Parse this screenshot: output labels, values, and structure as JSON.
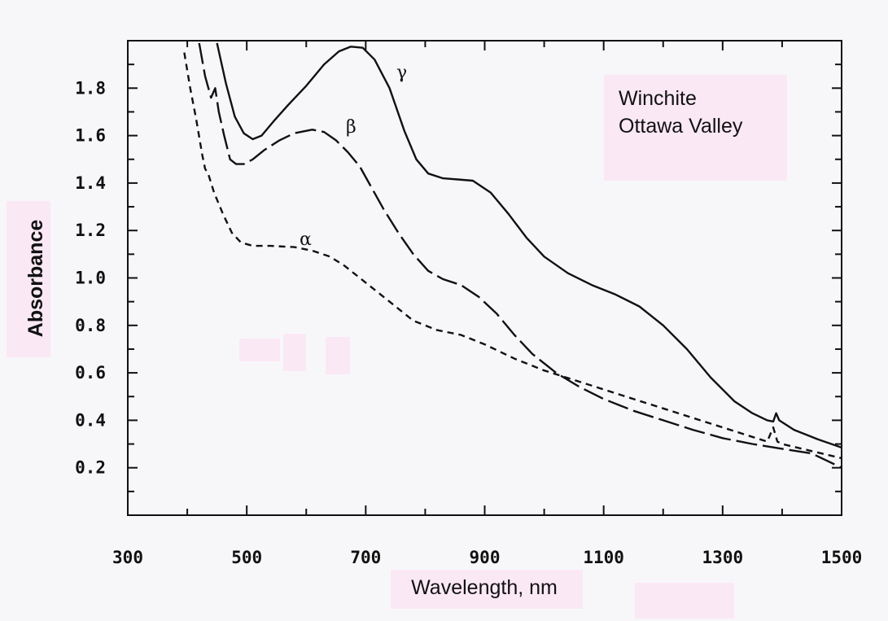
{
  "chart_data": {
    "type": "line",
    "xlabel": "Wavelength, nm",
    "ylabel": "Absorbance",
    "xlim": [
      300,
      1500
    ],
    "ylim": [
      0,
      2.0
    ],
    "xticks": [
      300,
      500,
      700,
      900,
      1100,
      1300,
      1500
    ],
    "yticks": [
      0.2,
      0.4,
      0.6,
      0.8,
      1.0,
      1.2,
      1.4,
      1.6,
      1.8
    ],
    "ytick_labels": [
      "0.2",
      "0.4",
      "0.6",
      "0.8",
      "1.0",
      "1.2",
      "1.4",
      "1.6",
      "1.8"
    ],
    "grid": false,
    "annotation": [
      "Winchite",
      "Ottawa Valley"
    ],
    "series": [
      {
        "name": "γ",
        "style": "solid",
        "points": [
          [
            450,
            1.99
          ],
          [
            465,
            1.82
          ],
          [
            480,
            1.68
          ],
          [
            495,
            1.61
          ],
          [
            510,
            1.585
          ],
          [
            525,
            1.6
          ],
          [
            545,
            1.66
          ],
          [
            570,
            1.73
          ],
          [
            600,
            1.81
          ],
          [
            630,
            1.9
          ],
          [
            655,
            1.955
          ],
          [
            675,
            1.975
          ],
          [
            695,
            1.97
          ],
          [
            715,
            1.92
          ],
          [
            740,
            1.8
          ],
          [
            765,
            1.62
          ],
          [
            785,
            1.5
          ],
          [
            805,
            1.44
          ],
          [
            830,
            1.42
          ],
          [
            855,
            1.415
          ],
          [
            880,
            1.41
          ],
          [
            910,
            1.36
          ],
          [
            940,
            1.27
          ],
          [
            970,
            1.17
          ],
          [
            1000,
            1.09
          ],
          [
            1040,
            1.02
          ],
          [
            1080,
            0.97
          ],
          [
            1120,
            0.93
          ],
          [
            1160,
            0.88
          ],
          [
            1200,
            0.8
          ],
          [
            1240,
            0.7
          ],
          [
            1280,
            0.58
          ],
          [
            1320,
            0.48
          ],
          [
            1350,
            0.43
          ],
          [
            1375,
            0.4
          ],
          [
            1385,
            0.395
          ],
          [
            1390,
            0.43
          ],
          [
            1395,
            0.4
          ],
          [
            1420,
            0.36
          ],
          [
            1460,
            0.32
          ],
          [
            1500,
            0.285
          ]
        ]
      },
      {
        "name": "β",
        "style": "dashed",
        "points": [
          [
            420,
            1.99
          ],
          [
            430,
            1.85
          ],
          [
            440,
            1.76
          ],
          [
            447,
            1.8
          ],
          [
            453,
            1.7
          ],
          [
            462,
            1.6
          ],
          [
            472,
            1.5
          ],
          [
            482,
            1.48
          ],
          [
            495,
            1.48
          ],
          [
            510,
            1.5
          ],
          [
            530,
            1.54
          ],
          [
            555,
            1.58
          ],
          [
            580,
            1.61
          ],
          [
            610,
            1.625
          ],
          [
            630,
            1.615
          ],
          [
            650,
            1.58
          ],
          [
            670,
            1.53
          ],
          [
            690,
            1.47
          ],
          [
            710,
            1.38
          ],
          [
            730,
            1.29
          ],
          [
            755,
            1.19
          ],
          [
            780,
            1.1
          ],
          [
            805,
            1.03
          ],
          [
            830,
            0.995
          ],
          [
            860,
            0.97
          ],
          [
            890,
            0.92
          ],
          [
            920,
            0.85
          ],
          [
            950,
            0.76
          ],
          [
            980,
            0.68
          ],
          [
            1020,
            0.6
          ],
          [
            1060,
            0.54
          ],
          [
            1100,
            0.49
          ],
          [
            1150,
            0.44
          ],
          [
            1200,
            0.4
          ],
          [
            1250,
            0.36
          ],
          [
            1300,
            0.325
          ],
          [
            1350,
            0.3
          ],
          [
            1400,
            0.28
          ],
          [
            1450,
            0.26
          ],
          [
            1500,
            0.2
          ]
        ]
      },
      {
        "name": "α",
        "style": "short-dashed",
        "points": [
          [
            395,
            1.95
          ],
          [
            405,
            1.8
          ],
          [
            415,
            1.67
          ],
          [
            425,
            1.52
          ],
          [
            430,
            1.46
          ],
          [
            435,
            1.44
          ],
          [
            445,
            1.36
          ],
          [
            460,
            1.27
          ],
          [
            475,
            1.19
          ],
          [
            490,
            1.15
          ],
          [
            510,
            1.135
          ],
          [
            540,
            1.135
          ],
          [
            580,
            1.13
          ],
          [
            610,
            1.115
          ],
          [
            640,
            1.09
          ],
          [
            665,
            1.05
          ],
          [
            700,
            0.98
          ],
          [
            740,
            0.9
          ],
          [
            780,
            0.82
          ],
          [
            820,
            0.78
          ],
          [
            860,
            0.76
          ],
          [
            900,
            0.72
          ],
          [
            950,
            0.66
          ],
          [
            1000,
            0.61
          ],
          [
            1050,
            0.57
          ],
          [
            1100,
            0.53
          ],
          [
            1150,
            0.49
          ],
          [
            1200,
            0.45
          ],
          [
            1250,
            0.41
          ],
          [
            1300,
            0.37
          ],
          [
            1350,
            0.33
          ],
          [
            1375,
            0.31
          ],
          [
            1385,
            0.37
          ],
          [
            1392,
            0.31
          ],
          [
            1400,
            0.3
          ],
          [
            1450,
            0.27
          ],
          [
            1500,
            0.24
          ]
        ]
      }
    ]
  }
}
